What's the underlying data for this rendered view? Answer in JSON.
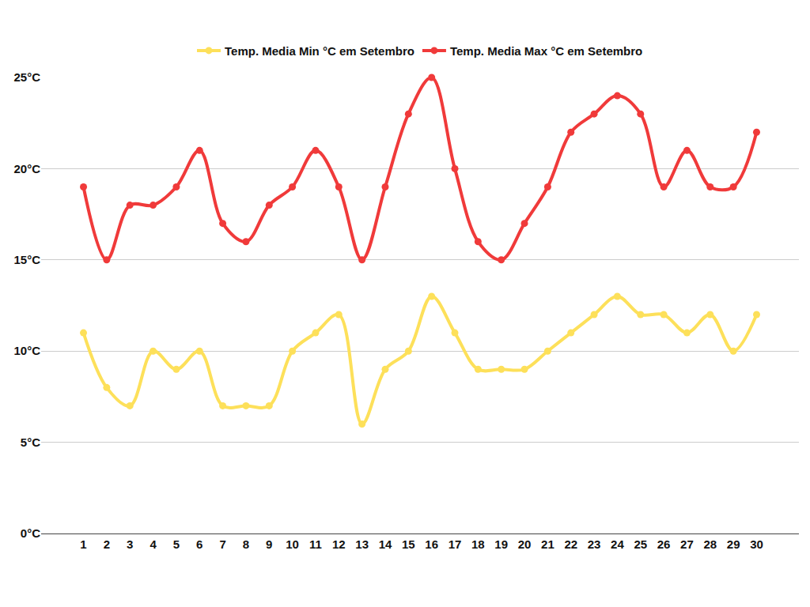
{
  "chart_data": {
    "type": "line",
    "categories": [
      "1",
      "2",
      "3",
      "4",
      "5",
      "6",
      "7",
      "8",
      "9",
      "10",
      "11",
      "12",
      "13",
      "14",
      "15",
      "16",
      "17",
      "18",
      "19",
      "20",
      "21",
      "22",
      "23",
      "24",
      "25",
      "26",
      "27",
      "28",
      "29",
      "30"
    ],
    "series": [
      {
        "name": "Temp. Media Min °C em Setembro",
        "color": "#fde05a",
        "values": [
          11,
          8,
          7,
          10,
          9,
          10,
          7,
          7,
          7,
          10,
          11,
          12,
          6,
          9,
          10,
          13,
          11,
          9,
          9,
          9,
          10,
          11,
          12,
          13,
          12,
          12,
          11,
          12,
          10,
          12
        ]
      },
      {
        "name": "Temp. Media Max °C em Setembro",
        "color": "#f03a3a",
        "values": [
          19,
          15,
          18,
          18,
          19,
          21,
          17,
          16,
          18,
          19,
          21,
          19,
          15,
          19,
          23,
          25,
          20,
          16,
          15,
          17,
          19,
          22,
          23,
          24,
          23,
          19,
          21,
          19,
          19,
          22
        ]
      }
    ],
    "ylim": [
      0,
      25
    ],
    "yticks": [
      {
        "value": 0,
        "label": "0°C"
      },
      {
        "value": 5,
        "label": "5°C"
      },
      {
        "value": 10,
        "label": "10°C"
      },
      {
        "value": 15,
        "label": "15°C"
      },
      {
        "value": 20,
        "label": "20°C"
      },
      {
        "value": 25,
        "label": "25°C"
      }
    ],
    "grid": true,
    "legend": "top",
    "line_style": "spline",
    "marker": "circle"
  }
}
